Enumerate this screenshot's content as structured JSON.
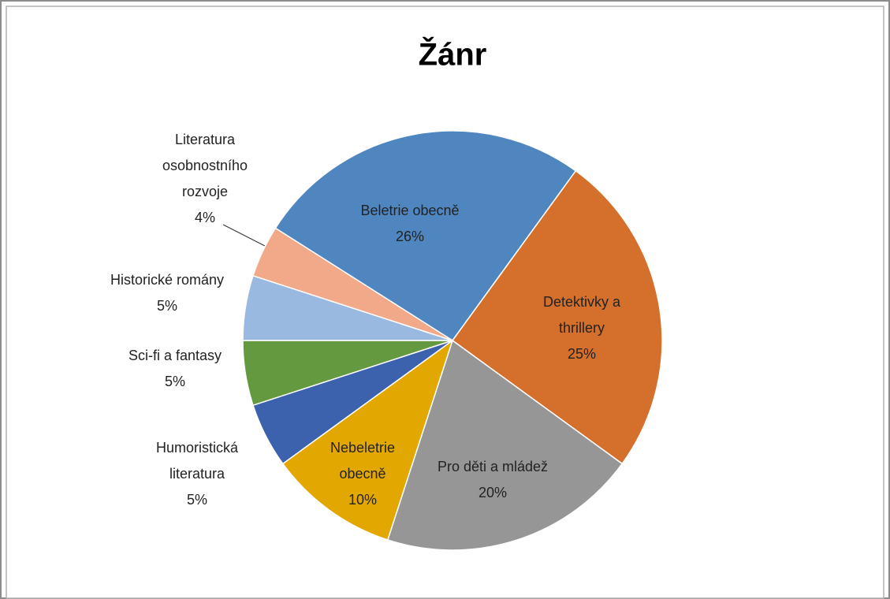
{
  "chart_data": {
    "type": "pie",
    "title": "Žánr",
    "categories": [
      "Beletrie obecně",
      "Detektivky a thrillery",
      "Pro děti a mládež",
      "Nebeletrie obecně",
      "Humoristická literatura",
      "Sci-fi a fantasy",
      "Historické romány",
      "Literatura osobnostního rozvoje"
    ],
    "values": [
      26,
      25,
      20,
      10,
      5,
      5,
      5,
      4
    ],
    "value_labels": [
      "26%",
      "25%",
      "20%",
      "10%",
      "5%",
      "5%",
      "5%",
      "4%"
    ],
    "colors": [
      "#4f86c0",
      "#d4702b",
      "#969696",
      "#e2a700",
      "#3c62ad",
      "#65993f",
      "#9ab9e0",
      "#f1a98a"
    ]
  }
}
